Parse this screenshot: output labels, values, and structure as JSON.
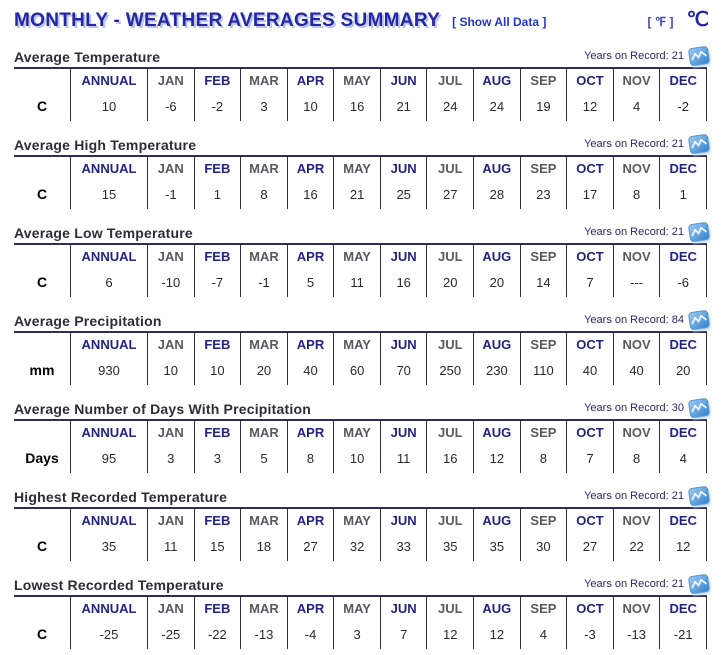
{
  "header": {
    "title": "MONTHLY - WEATHER AVERAGES SUMMARY",
    "show_all_data": "[ Show All Data ]",
    "fahrenheit_link": "[ ℉ ]",
    "celsius_label": "℃"
  },
  "years_on_record_label": "Years on Record:",
  "columns": [
    "ANNUAL",
    "JAN",
    "FEB",
    "MAR",
    "APR",
    "MAY",
    "JUN",
    "JUL",
    "AUG",
    "SEP",
    "OCT",
    "NOV",
    "DEC"
  ],
  "sections": [
    {
      "title": "Average Temperature",
      "unit": "C",
      "years": "21",
      "values": [
        "10",
        "-6",
        "-2",
        "3",
        "10",
        "16",
        "21",
        "24",
        "24",
        "19",
        "12",
        "4",
        "-2"
      ]
    },
    {
      "title": "Average High Temperature",
      "unit": "C",
      "years": "21",
      "values": [
        "15",
        "-1",
        "1",
        "8",
        "16",
        "21",
        "25",
        "27",
        "28",
        "23",
        "17",
        "8",
        "1"
      ]
    },
    {
      "title": "Average Low Temperature",
      "unit": "C",
      "years": "21",
      "values": [
        "6",
        "-10",
        "-7",
        "-1",
        "5",
        "11",
        "16",
        "20",
        "20",
        "14",
        "7",
        "---",
        "-6"
      ]
    },
    {
      "title": "Average Precipitation",
      "unit": "mm",
      "years": "84",
      "values": [
        "930",
        "10",
        "10",
        "20",
        "40",
        "60",
        "70",
        "250",
        "230",
        "110",
        "40",
        "40",
        "20"
      ]
    },
    {
      "title": "Average Number of Days With Precipitation",
      "unit": "Days",
      "years": "30",
      "values": [
        "95",
        "3",
        "3",
        "5",
        "8",
        "10",
        "11",
        "16",
        "12",
        "8",
        "7",
        "8",
        "4"
      ]
    },
    {
      "title": "Highest Recorded Temperature",
      "unit": "C",
      "years": "21",
      "values": [
        "35",
        "11",
        "15",
        "18",
        "27",
        "32",
        "33",
        "35",
        "35",
        "30",
        "27",
        "22",
        "12"
      ]
    },
    {
      "title": "Lowest Recorded Temperature",
      "unit": "C",
      "years": "21",
      "values": [
        "-25",
        "-25",
        "-22",
        "-13",
        "-4",
        "3",
        "7",
        "12",
        "12",
        "4",
        "-3",
        "-13",
        "-21"
      ]
    }
  ],
  "icons": {
    "years_badge": "chart-wave-icon"
  },
  "colors": {
    "title_blue": "#2525a8",
    "title_shadow": "#b9c6ec",
    "link_blue": "#2436c8",
    "header_navy": "#232382",
    "header_gray": "#595962",
    "table_border": "#2c2c5e",
    "icon_blue_light": "#9ecdf2",
    "icon_blue_dark": "#2f7fd0"
  }
}
